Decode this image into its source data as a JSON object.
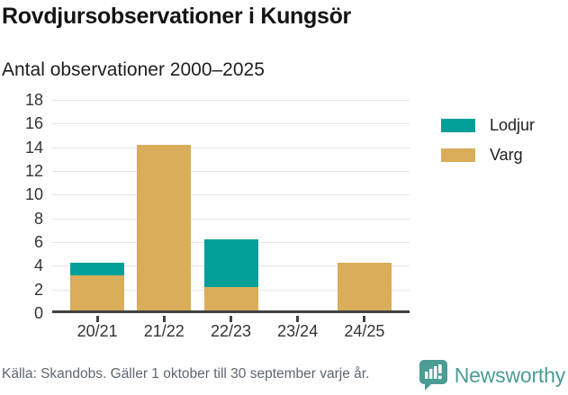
{
  "header": {
    "title": "Rovdjursobservationer i Kungsör",
    "subtitle": "Antal observationer 2000–2025"
  },
  "chart_data": {
    "type": "bar",
    "stacked": true,
    "categories": [
      "20/21",
      "21/22",
      "22/23",
      "23/24",
      "24/25"
    ],
    "series": [
      {
        "name": "Lodjur",
        "color": "#00a099",
        "values": [
          1,
          0,
          4,
          0,
          0
        ]
      },
      {
        "name": "Varg",
        "color": "#d9ad5a",
        "values": [
          3,
          14,
          2,
          0,
          4
        ]
      }
    ],
    "title": "Rovdjursobservationer i Kungsör",
    "subtitle": "Antal observationer 2000–2025",
    "xlabel": "",
    "ylabel": "",
    "ylim": [
      0,
      18
    ],
    "ytick_step": 2,
    "grid": true,
    "legend_position": "right",
    "stack_totals": [
      4,
      14,
      6,
      0,
      4
    ]
  },
  "footer": {
    "source": "Källa: Skandobs. Gäller 1 oktober till 30 september varje år.",
    "brand": "Newsworthy"
  },
  "colors": {
    "lodjur": "#00a099",
    "varg": "#d9ad5a",
    "axis_line": "#424242",
    "gridline": "#e5e5e5",
    "axis_text": "#333333",
    "footer_text": "#5d6770",
    "brand_teal": "#4a9c95"
  }
}
